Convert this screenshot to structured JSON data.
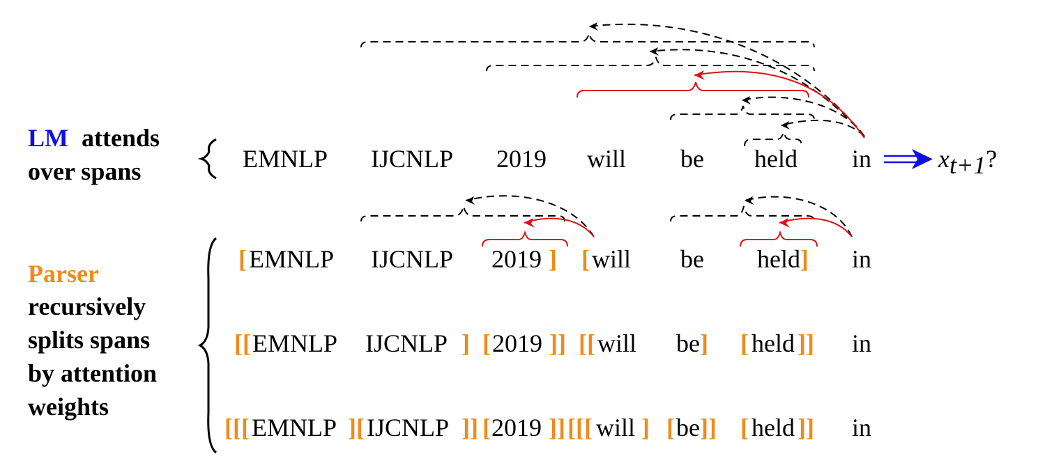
{
  "labels": {
    "lm_highlight": "LM",
    "lm_line1_rest": "attends",
    "lm_line2": "over spans",
    "parser_highlight": "Parser",
    "parser_line2": "recursively",
    "parser_line3": "splits spans",
    "parser_line4": "by attention",
    "parser_line5": "weights"
  },
  "lm_row": {
    "words": [
      "EMNLP",
      "IJCNLP",
      "2019",
      "will",
      "be",
      "held",
      "in"
    ],
    "target": "x",
    "target_subscript": "t+1",
    "target_suffix": "?"
  },
  "parse_rows": [
    {
      "tokens": [
        {
          "t": "[",
          "b": true
        },
        {
          "t": "EMNLP"
        },
        {
          "t": "IJCNLP"
        },
        {
          "t": "2019"
        },
        {
          "t": "]",
          "b": true
        },
        {
          "t": "[",
          "b": true
        },
        {
          "t": "will"
        },
        {
          "t": "be"
        },
        {
          "t": "held"
        },
        {
          "t": "]",
          "b": true
        },
        {
          "t": "in"
        }
      ]
    },
    {
      "tokens": [
        {
          "t": "[[",
          "b": true
        },
        {
          "t": "EMNLP"
        },
        {
          "t": "IJCNLP"
        },
        {
          "t": "]",
          "b": true
        },
        {
          "t": "[",
          "b": true
        },
        {
          "t": "2019"
        },
        {
          "t": "]]",
          "b": true
        },
        {
          "t": "[[",
          "b": true
        },
        {
          "t": "will"
        },
        {
          "t": "be"
        },
        {
          "t": "]",
          "b": true
        },
        {
          "t": "[",
          "b": true
        },
        {
          "t": "held"
        },
        {
          "t": "]]",
          "b": true
        },
        {
          "t": "in"
        }
      ]
    },
    {
      "tokens": [
        {
          "t": "[[[",
          "b": true
        },
        {
          "t": "EMNLP"
        },
        {
          "t": "][",
          "b": true
        },
        {
          "t": "IJCNLP"
        },
        {
          "t": "]]",
          "b": true
        },
        {
          "t": "[",
          "b": true
        },
        {
          "t": "2019"
        },
        {
          "t": "]]",
          "b": true
        },
        {
          "t": "[[[",
          "b": true
        },
        {
          "t": "will"
        },
        {
          "t": "]",
          "b": true
        },
        {
          "t": "[",
          "b": true
        },
        {
          "t": "be"
        },
        {
          "t": "]]",
          "b": true
        },
        {
          "t": "[",
          "b": true
        },
        {
          "t": "held"
        },
        {
          "t": "]]",
          "b": true
        },
        {
          "t": "in"
        }
      ]
    }
  ],
  "colors": {
    "lm": "#1010e0",
    "parser": "#f08a1c",
    "attention_strong": "#e01010",
    "attention_weak": "#000000"
  }
}
